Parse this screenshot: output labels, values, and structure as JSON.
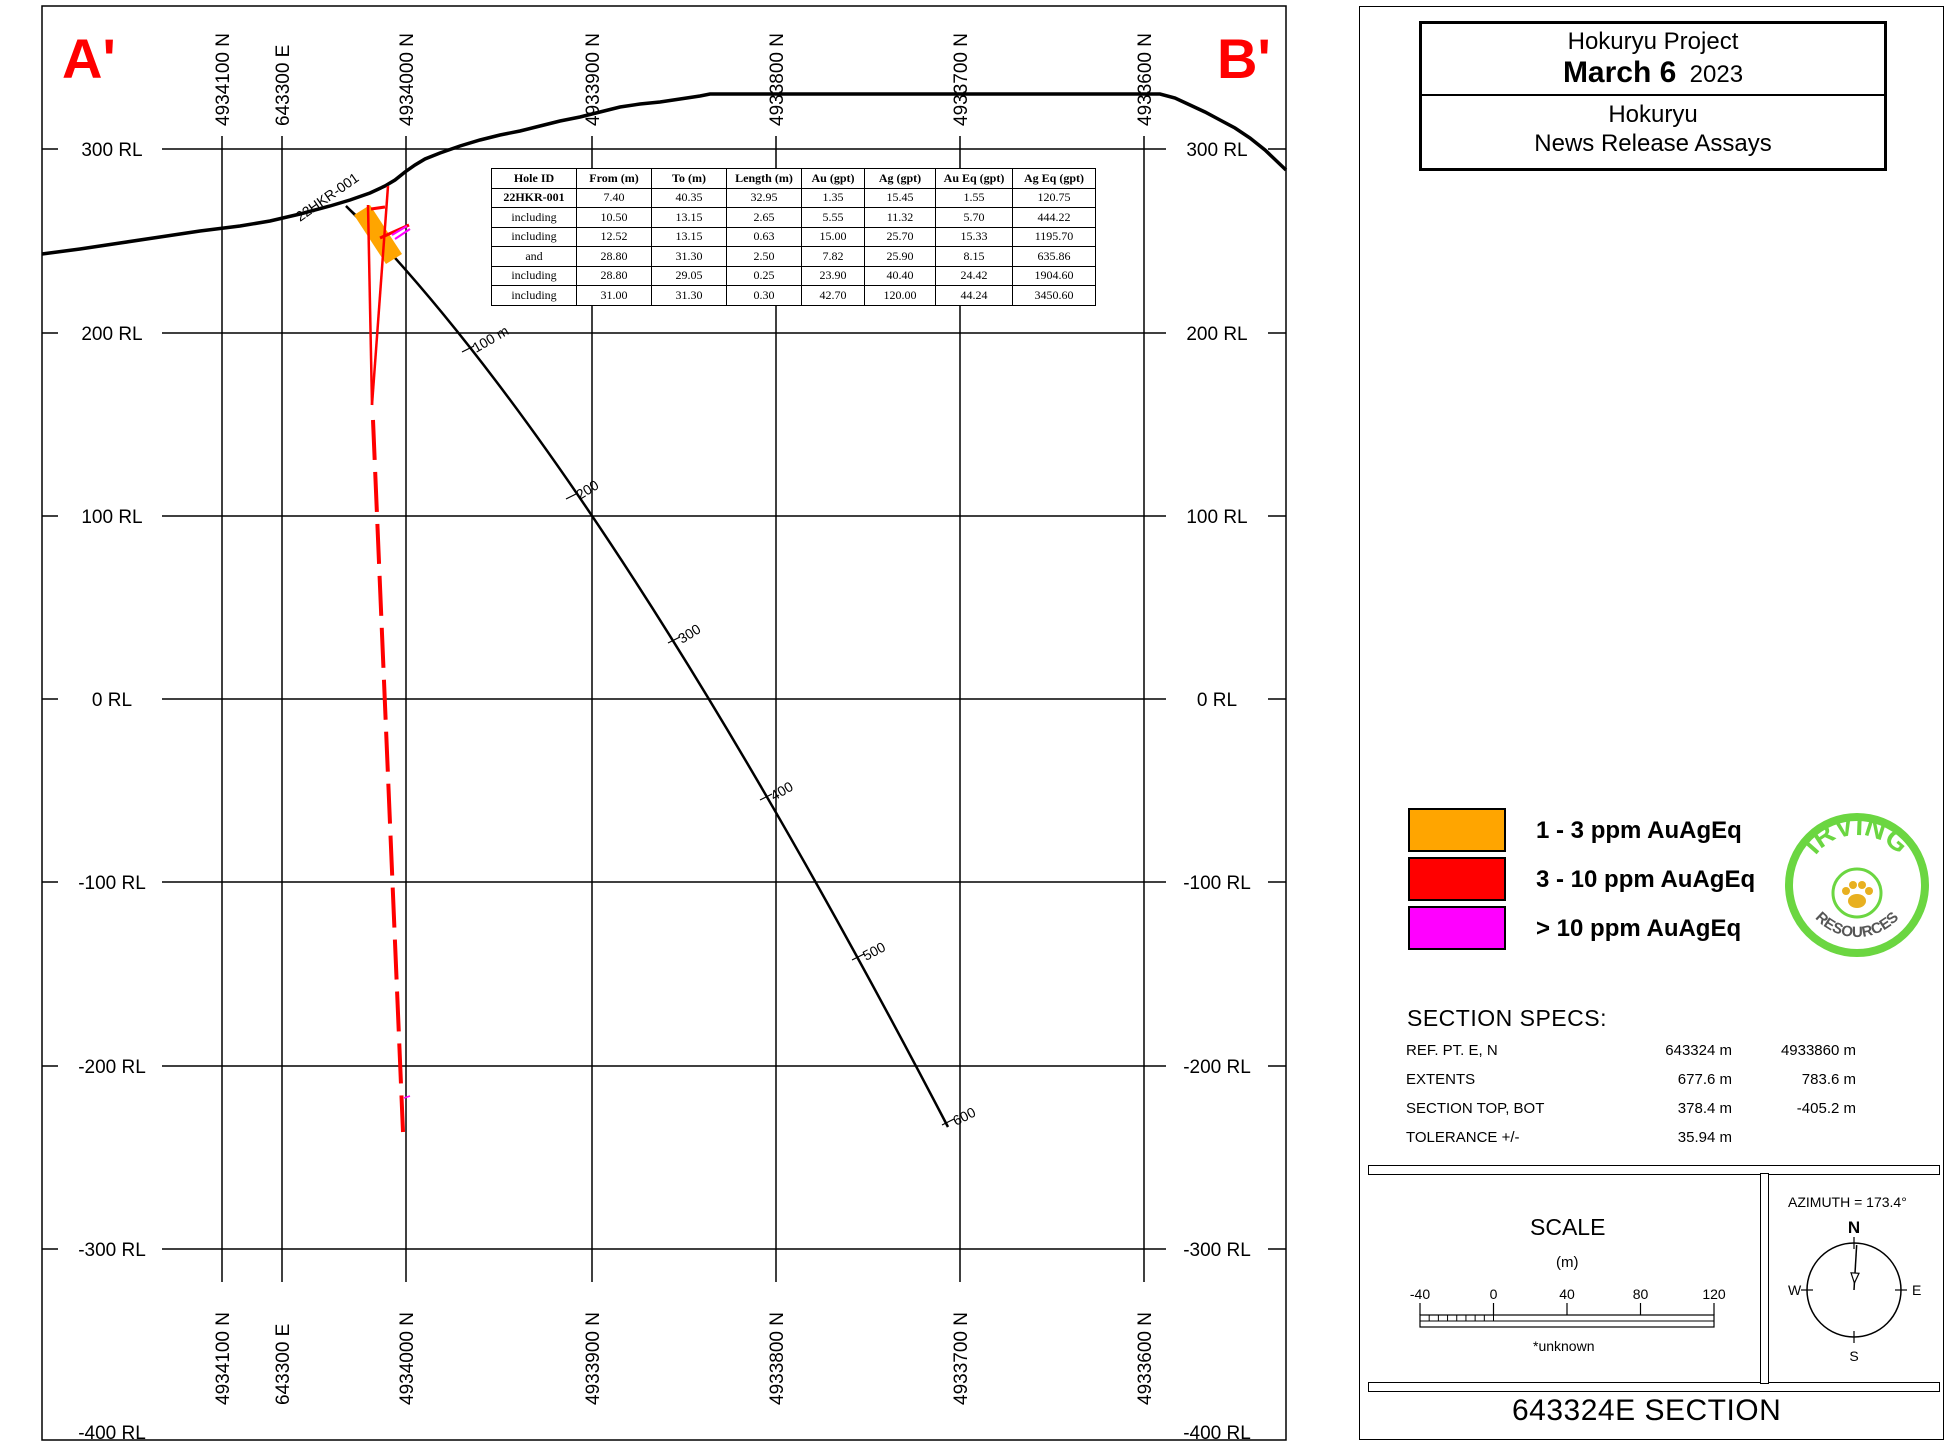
{
  "section": {
    "left_marker": "A'",
    "right_marker": "B'",
    "rl_labels": [
      "300 RL",
      "200 RL",
      "100 RL",
      "0 RL",
      "-100 RL",
      "-200 RL",
      "-300 RL",
      "-400 RL"
    ],
    "grid_labels": [
      "4934100 N",
      "643300 E",
      "4934000 N",
      "4933900 N",
      "4933800 N",
      "4933700 N",
      "4933600 N"
    ],
    "hole_id": "22HKR-001",
    "depth_labels": [
      "100 m",
      "200",
      "300",
      "400",
      "500",
      "600"
    ]
  },
  "assay_table": {
    "headers": [
      "Hole ID",
      "From (m)",
      "To (m)",
      "Length (m)",
      "Au (gpt)",
      "Ag (gpt)",
      "Au Eq (gpt)",
      "Ag Eq (gpt)"
    ],
    "rows": [
      [
        "22HKR-001",
        "7.40",
        "40.35",
        "32.95",
        "1.35",
        "15.45",
        "1.55",
        "120.75"
      ],
      [
        "including",
        "10.50",
        "13.15",
        "2.65",
        "5.55",
        "11.32",
        "5.70",
        "444.22"
      ],
      [
        "including",
        "12.52",
        "13.15",
        "0.63",
        "15.00",
        "25.70",
        "15.33",
        "1195.70"
      ],
      [
        "and",
        "28.80",
        "31.30",
        "2.50",
        "7.82",
        "25.90",
        "8.15",
        "635.86"
      ],
      [
        "including",
        "28.80",
        "29.05",
        "0.25",
        "23.90",
        "40.40",
        "24.42",
        "1904.60"
      ],
      [
        "including",
        "31.00",
        "31.30",
        "0.30",
        "42.70",
        "120.00",
        "44.24",
        "3450.60"
      ]
    ]
  },
  "title_block": {
    "project": "Hokuryu Project",
    "date_bold": "March 6",
    "year": "2023",
    "name": "Hokuryu",
    "subtitle": "News Release Assays"
  },
  "legend": [
    {
      "label": "1 - 3 ppm AuAgEq",
      "color": "#ffa500"
    },
    {
      "label": "3 - 10 ppm AuAgEq",
      "color": "#ff0000"
    },
    {
      "label": "> 10 ppm AuAgEq",
      "color": "#ff00ff"
    }
  ],
  "logo": {
    "text_top": "IRVING",
    "text_bottom": "RESOURCES",
    "color": "#6bd641"
  },
  "specs": {
    "title": "SECTION  SPECS:",
    "rows": [
      {
        "label": "REF. PT.  E, N",
        "v1": "643324 m",
        "v2": "4933860 m"
      },
      {
        "label": "EXTENTS",
        "v1": "677.6 m",
        "v2": "783.6 m"
      },
      {
        "label": "SECTION TOP, BOT",
        "v1": "378.4 m",
        "v2": "-405.2 m"
      },
      {
        "label": "TOLERANCE  +/-",
        "v1": "35.94 m",
        "v2": ""
      }
    ]
  },
  "scale": {
    "title": "SCALE",
    "unit": "(m)",
    "ticks": [
      "-40",
      "0",
      "40",
      "80",
      "120"
    ],
    "note": "*unknown"
  },
  "azimuth": {
    "label": "AZIMUTH = 173.4°",
    "value_deg": 173.4,
    "n": "N",
    "s": "S",
    "e": "E",
    "w": "W"
  },
  "section_name": "643324E  SECTION"
}
